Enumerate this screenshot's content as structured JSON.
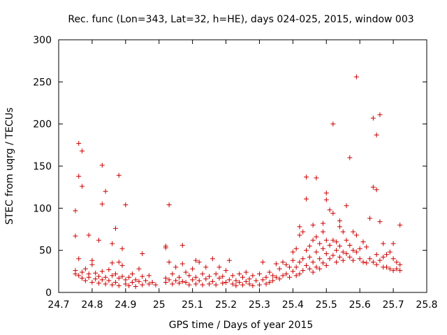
{
  "chart_data": {
    "type": "scatter",
    "title": "Rec. func (Lon=343, Lat=32, h=HE), days 024-025, 2015, window 003",
    "xlabel": "GPS time / Days of year 2015",
    "ylabel": "STEC from uqrg / TECUs",
    "xlim": [
      24.7,
      25.8
    ],
    "ylim": [
      0,
      300
    ],
    "xticks": [
      "24.7",
      "24.8",
      "24.9",
      "25",
      "25.1",
      "25.2",
      "25.3",
      "25.4",
      "25.5",
      "25.6",
      "25.7",
      "25.8"
    ],
    "yticks": [
      "0",
      "50",
      "100",
      "150",
      "200",
      "250",
      "300"
    ],
    "grid": false,
    "marker_color": "#cc0000",
    "marker": "plus",
    "points": [
      [
        24.75,
        97
      ],
      [
        24.75,
        67
      ],
      [
        24.76,
        177
      ],
      [
        24.76,
        138
      ],
      [
        24.77,
        168
      ],
      [
        24.77,
        126
      ],
      [
        24.79,
        68
      ],
      [
        24.82,
        62
      ],
      [
        24.83,
        151
      ],
      [
        24.83,
        105
      ],
      [
        24.84,
        120
      ],
      [
        24.86,
        58
      ],
      [
        24.87,
        76
      ],
      [
        24.88,
        139
      ],
      [
        24.89,
        52
      ],
      [
        24.9,
        104
      ],
      [
        24.95,
        46
      ],
      [
        24.75,
        26
      ],
      [
        24.75,
        22
      ],
      [
        24.76,
        40
      ],
      [
        24.76,
        20
      ],
      [
        24.77,
        24
      ],
      [
        24.77,
        17
      ],
      [
        24.78,
        28
      ],
      [
        24.78,
        14
      ],
      [
        24.79,
        22
      ],
      [
        24.79,
        18
      ],
      [
        24.8,
        38
      ],
      [
        24.8,
        33
      ],
      [
        24.8,
        12
      ],
      [
        24.81,
        23
      ],
      [
        24.81,
        16
      ],
      [
        24.82,
        19
      ],
      [
        24.82,
        11
      ],
      [
        24.83,
        25
      ],
      [
        24.83,
        15
      ],
      [
        24.84,
        18
      ],
      [
        24.84,
        10
      ],
      [
        24.85,
        27
      ],
      [
        24.85,
        14
      ],
      [
        24.86,
        35
      ],
      [
        24.86,
        20
      ],
      [
        24.86,
        9
      ],
      [
        24.87,
        22
      ],
      [
        24.87,
        12
      ],
      [
        24.88,
        36
      ],
      [
        24.88,
        17
      ],
      [
        24.88,
        8
      ],
      [
        24.89,
        32
      ],
      [
        24.89,
        19
      ],
      [
        24.9,
        15
      ],
      [
        24.9,
        10
      ],
      [
        24.91,
        18
      ],
      [
        24.91,
        8
      ],
      [
        24.92,
        22
      ],
      [
        24.92,
        12
      ],
      [
        24.93,
        15
      ],
      [
        24.93,
        7
      ],
      [
        24.94,
        28
      ],
      [
        24.94,
        13
      ],
      [
        24.95,
        19
      ],
      [
        24.95,
        9
      ],
      [
        24.96,
        14
      ],
      [
        24.97,
        20
      ],
      [
        24.97,
        10
      ],
      [
        24.98,
        12
      ],
      [
        24.99,
        9
      ],
      [
        25.02,
        55
      ],
      [
        25.02,
        53
      ],
      [
        25.02,
        17
      ],
      [
        25.02,
        12
      ],
      [
        25.03,
        104
      ],
      [
        25.03,
        36
      ],
      [
        25.03,
        15
      ],
      [
        25.04,
        22
      ],
      [
        25.04,
        10
      ],
      [
        25.05,
        30
      ],
      [
        25.05,
        14
      ],
      [
        25.06,
        18
      ],
      [
        25.06,
        11
      ],
      [
        25.07,
        56
      ],
      [
        25.07,
        34
      ],
      [
        25.07,
        13
      ],
      [
        25.08,
        24
      ],
      [
        25.08,
        12
      ],
      [
        25.09,
        20
      ],
      [
        25.09,
        9
      ],
      [
        25.1,
        28
      ],
      [
        25.1,
        15
      ],
      [
        25.11,
        38
      ],
      [
        25.11,
        18
      ],
      [
        25.11,
        10
      ],
      [
        25.12,
        36
      ],
      [
        25.12,
        14
      ],
      [
        25.13,
        22
      ],
      [
        25.13,
        9
      ],
      [
        25.14,
        30
      ],
      [
        25.14,
        16
      ],
      [
        25.15,
        19
      ],
      [
        25.15,
        10
      ],
      [
        25.16,
        40
      ],
      [
        25.16,
        13
      ],
      [
        25.17,
        22
      ],
      [
        25.17,
        9
      ],
      [
        25.18,
        30
      ],
      [
        25.18,
        17
      ],
      [
        25.19,
        19
      ],
      [
        25.19,
        11
      ],
      [
        25.2,
        26
      ],
      [
        25.2,
        12
      ],
      [
        25.21,
        38
      ],
      [
        25.21,
        15
      ],
      [
        25.22,
        20
      ],
      [
        25.22,
        10
      ],
      [
        25.23,
        14
      ],
      [
        25.23,
        8
      ],
      [
        25.24,
        22
      ],
      [
        25.24,
        12
      ],
      [
        25.25,
        18
      ],
      [
        25.25,
        9
      ],
      [
        25.26,
        24
      ],
      [
        25.26,
        13
      ],
      [
        25.27,
        16
      ],
      [
        25.27,
        10
      ],
      [
        25.28,
        20
      ],
      [
        25.28,
        8
      ],
      [
        25.29,
        14
      ],
      [
        25.3,
        22
      ],
      [
        25.3,
        9
      ],
      [
        25.31,
        36
      ],
      [
        25.31,
        15
      ],
      [
        25.32,
        18
      ],
      [
        25.32,
        10
      ],
      [
        25.33,
        24
      ],
      [
        25.33,
        12
      ],
      [
        25.34,
        20
      ],
      [
        25.34,
        14
      ],
      [
        25.35,
        34
      ],
      [
        25.35,
        18
      ],
      [
        25.36,
        28
      ],
      [
        25.36,
        16
      ],
      [
        25.37,
        36
      ],
      [
        25.37,
        20
      ],
      [
        25.38,
        33
      ],
      [
        25.38,
        22
      ],
      [
        25.39,
        30
      ],
      [
        25.39,
        18
      ],
      [
        25.4,
        48
      ],
      [
        25.4,
        38
      ],
      [
        25.4,
        25
      ],
      [
        25.41,
        52
      ],
      [
        25.41,
        30
      ],
      [
        25.41,
        20
      ],
      [
        25.42,
        78
      ],
      [
        25.42,
        68
      ],
      [
        25.42,
        36
      ],
      [
        25.42,
        22
      ],
      [
        25.43,
        72
      ],
      [
        25.43,
        40
      ],
      [
        25.43,
        26
      ],
      [
        25.44,
        137
      ],
      [
        25.44,
        111
      ],
      [
        25.44,
        50
      ],
      [
        25.44,
        32
      ],
      [
        25.45,
        55
      ],
      [
        25.45,
        42
      ],
      [
        25.45,
        28
      ],
      [
        25.46,
        80
      ],
      [
        25.46,
        62
      ],
      [
        25.46,
        36
      ],
      [
        25.46,
        24
      ],
      [
        25.47,
        136
      ],
      [
        25.47,
        66
      ],
      [
        25.47,
        48
      ],
      [
        25.47,
        30
      ],
      [
        25.48,
        58
      ],
      [
        25.48,
        40
      ],
      [
        25.48,
        28
      ],
      [
        25.49,
        82
      ],
      [
        25.49,
        72
      ],
      [
        25.49,
        52
      ],
      [
        25.49,
        35
      ],
      [
        25.5,
        118
      ],
      [
        25.5,
        110
      ],
      [
        25.5,
        62
      ],
      [
        25.5,
        46
      ],
      [
        25.5,
        32
      ],
      [
        25.51,
        98
      ],
      [
        25.51,
        56
      ],
      [
        25.51,
        40
      ],
      [
        25.52,
        200
      ],
      [
        25.52,
        94
      ],
      [
        25.52,
        62
      ],
      [
        25.52,
        44
      ],
      [
        25.53,
        60
      ],
      [
        25.53,
        50
      ],
      [
        25.53,
        36
      ],
      [
        25.54,
        85
      ],
      [
        25.54,
        78
      ],
      [
        25.54,
        55
      ],
      [
        25.54,
        42
      ],
      [
        25.55,
        72
      ],
      [
        25.55,
        48
      ],
      [
        25.55,
        38
      ],
      [
        25.56,
        103
      ],
      [
        25.56,
        62
      ],
      [
        25.56,
        46
      ],
      [
        25.57,
        160
      ],
      [
        25.57,
        56
      ],
      [
        25.57,
        42
      ],
      [
        25.58,
        72
      ],
      [
        25.58,
        50
      ],
      [
        25.58,
        38
      ],
      [
        25.59,
        256
      ],
      [
        25.59,
        68
      ],
      [
        25.59,
        48
      ],
      [
        25.6,
        52
      ],
      [
        25.6,
        40
      ],
      [
        25.61,
        60
      ],
      [
        25.61,
        36
      ],
      [
        25.62,
        54
      ],
      [
        25.62,
        35
      ],
      [
        25.63,
        88
      ],
      [
        25.63,
        40
      ],
      [
        25.64,
        207
      ],
      [
        25.64,
        125
      ],
      [
        25.64,
        36
      ],
      [
        25.65,
        187
      ],
      [
        25.65,
        122
      ],
      [
        25.65,
        45
      ],
      [
        25.65,
        33
      ],
      [
        25.66,
        211
      ],
      [
        25.66,
        84
      ],
      [
        25.66,
        38
      ],
      [
        25.67,
        58
      ],
      [
        25.67,
        42
      ],
      [
        25.67,
        30
      ],
      [
        25.68,
        45
      ],
      [
        25.68,
        30
      ],
      [
        25.69,
        48
      ],
      [
        25.69,
        28
      ],
      [
        25.7,
        58
      ],
      [
        25.7,
        40
      ],
      [
        25.7,
        26
      ],
      [
        25.71,
        36
      ],
      [
        25.71,
        28
      ],
      [
        25.72,
        80
      ],
      [
        25.72,
        33
      ],
      [
        25.72,
        26
      ]
    ]
  }
}
